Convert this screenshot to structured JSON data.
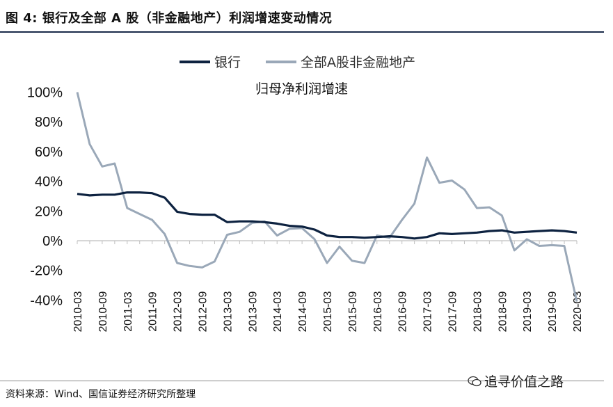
{
  "figure": {
    "title": "图  4:  银行及全部 A 股（非金融地产）利润增速变动情况",
    "source": "资料来源：Wind、国信证券经济研究所整理",
    "watermark": "追寻价值之路"
  },
  "chart_data": {
    "type": "line",
    "title": "归母净利润增速",
    "ylim": [
      -40,
      100
    ],
    "y_ticks": [
      "100%",
      "80%",
      "60%",
      "40%",
      "20%",
      "0%",
      "-20%",
      "-40%"
    ],
    "y_tick_values": [
      100,
      80,
      60,
      40,
      20,
      0,
      -20,
      -40
    ],
    "x_tick_labels": [
      "2010-03",
      "2010-09",
      "2011-03",
      "2011-09",
      "2012-03",
      "2012-09",
      "2013-03",
      "2013-09",
      "2014-03",
      "2014-09",
      "2015-03",
      "2015-09",
      "2016-03",
      "2016-09",
      "2017-03",
      "2017-09",
      "2018-03",
      "2018-09",
      "2019-03",
      "2019-09",
      "2020-03"
    ],
    "x": [
      "2010-03",
      "2010-06",
      "2010-09",
      "2010-12",
      "2011-03",
      "2011-06",
      "2011-09",
      "2011-12",
      "2012-03",
      "2012-06",
      "2012-09",
      "2012-12",
      "2013-03",
      "2013-06",
      "2013-09",
      "2013-12",
      "2014-03",
      "2014-06",
      "2014-09",
      "2014-12",
      "2015-03",
      "2015-06",
      "2015-09",
      "2015-12",
      "2016-03",
      "2016-06",
      "2016-09",
      "2016-12",
      "2017-03",
      "2017-06",
      "2017-09",
      "2017-12",
      "2018-03",
      "2018-06",
      "2018-09",
      "2018-12",
      "2019-03",
      "2019-06",
      "2019-09",
      "2019-12",
      "2020-03"
    ],
    "legend_position": "top",
    "grid": false,
    "series": [
      {
        "name": "银行",
        "color": "#0d2240",
        "values": [
          31.5,
          30.5,
          31,
          31,
          32.5,
          32.5,
          32,
          29,
          19.5,
          18,
          17.5,
          17.5,
          12.5,
          13,
          13,
          12.5,
          11.5,
          10,
          9.5,
          7.5,
          3.5,
          2.5,
          2.5,
          2,
          2.5,
          3,
          2.5,
          1.5,
          2.5,
          5,
          4.5,
          5,
          5.5,
          6.5,
          7,
          5.5,
          6,
          6.5,
          7,
          6.5,
          5.5
        ]
      },
      {
        "name": "全部A股非金融地产",
        "color": "#9aa8b8",
        "values": [
          100,
          65,
          50,
          52,
          22,
          18,
          14,
          4.5,
          -15,
          -17,
          -18,
          -14,
          4,
          6,
          12,
          13,
          3.5,
          8,
          8.5,
          1,
          -15,
          -4,
          -13.5,
          -15,
          3.5,
          2,
          14,
          25,
          56,
          39,
          40.5,
          34.5,
          22,
          22.5,
          17,
          -6.5,
          1,
          -3.5,
          -3,
          -3.5,
          -41
        ]
      }
    ]
  }
}
